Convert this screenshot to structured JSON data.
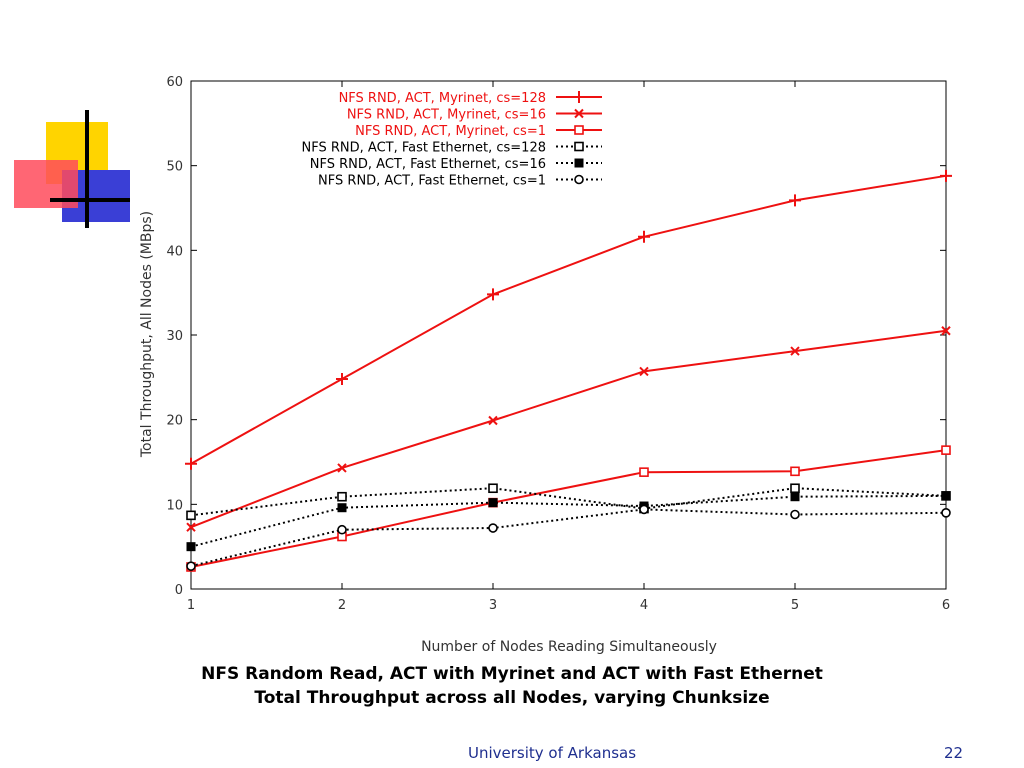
{
  "caption": {
    "line1": "NFS Random Read, ACT with Myrinet and ACT with Fast Ethernet",
    "line2": "Total Throughput across all Nodes, varying Chunksize"
  },
  "footer": {
    "organization": "University of Arkansas",
    "page_number": "22"
  },
  "colors": {
    "myrinet": "#ee1111",
    "fast_ethernet": "#000000",
    "footer_text": "#1f2f8f"
  },
  "chart_data": {
    "type": "line",
    "xlabel": "Number of Nodes Reading Simultaneously",
    "ylabel": "Total Throughput, All Nodes (MBps)",
    "xlim": [
      1,
      6
    ],
    "ylim": [
      0,
      60
    ],
    "xticks": [
      1,
      2,
      3,
      4,
      5,
      6
    ],
    "yticks": [
      0,
      10,
      20,
      30,
      40,
      50,
      60
    ],
    "grid": false,
    "legend_position": "top-right",
    "x": [
      1,
      2,
      3,
      4,
      5,
      6
    ],
    "series": [
      {
        "name": "NFS RND, ACT, Myrinet, cs=128",
        "values": [
          14.8,
          24.8,
          34.8,
          41.6,
          45.9,
          48.8
        ],
        "color": "#ee1111",
        "line": "solid",
        "marker": "plus"
      },
      {
        "name": "NFS RND, ACT, Myrinet, cs=16",
        "values": [
          7.3,
          14.3,
          19.9,
          25.7,
          28.1,
          30.5
        ],
        "color": "#ee1111",
        "line": "solid",
        "marker": "x"
      },
      {
        "name": "NFS RND, ACT, Myrinet, cs=1",
        "values": [
          2.6,
          6.2,
          10.2,
          13.8,
          13.9,
          16.4
        ],
        "color": "#ee1111",
        "line": "solid",
        "marker": "open-square"
      },
      {
        "name": "NFS RND, ACT, Fast Ethernet, cs=128",
        "values": [
          8.7,
          10.9,
          11.9,
          9.5,
          11.9,
          11.0
        ],
        "color": "#000000",
        "line": "dotted",
        "marker": "open-square"
      },
      {
        "name": "NFS RND, ACT, Fast Ethernet, cs=16",
        "values": [
          5.0,
          9.6,
          10.2,
          9.8,
          10.9,
          11.0
        ],
        "color": "#000000",
        "line": "dotted",
        "marker": "filled-square"
      },
      {
        "name": "NFS RND, ACT, Fast Ethernet, cs=1",
        "values": [
          2.7,
          7.0,
          7.2,
          9.4,
          8.8,
          9.0
        ],
        "color": "#000000",
        "line": "dotted",
        "marker": "open-circle"
      }
    ]
  }
}
